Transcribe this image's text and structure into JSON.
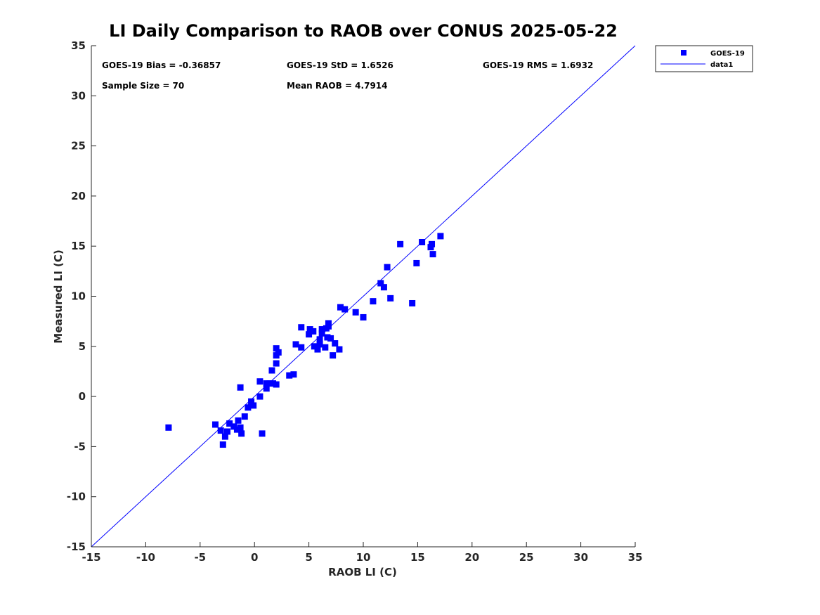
{
  "chart_data": {
    "type": "scatter",
    "title": "LI Daily Comparison to RAOB over CONUS 2025-05-22",
    "xlabel": "RAOB LI (C)",
    "ylabel": "Measured LI (C)",
    "xlim": [
      -15,
      35
    ],
    "ylim": [
      -15,
      35
    ],
    "xticks": [
      -15,
      -10,
      -5,
      0,
      5,
      10,
      15,
      20,
      25,
      30,
      35
    ],
    "yticks": [
      -15,
      -10,
      -5,
      0,
      5,
      10,
      15,
      20,
      25,
      30,
      35
    ],
    "grid": false,
    "legend_position": "outside-top-right",
    "stats": {
      "bias": "GOES-19 Bias = -0.36857",
      "std": "GOES-19 StD = 1.6526",
      "rms": "GOES-19 RMS = 1.6932",
      "sample_size": "Sample Size = 70",
      "mean_raob": "Mean RAOB = 4.7914"
    },
    "series": [
      {
        "name": "GOES-19",
        "marker": "square",
        "color": "#0000ff",
        "points": [
          [
            -7.9,
            -3.1
          ],
          [
            -3.6,
            -2.8
          ],
          [
            -3.1,
            -3.4
          ],
          [
            -2.9,
            -4.8
          ],
          [
            -2.7,
            -4.0
          ],
          [
            -2.5,
            -3.5
          ],
          [
            -2.3,
            -2.7
          ],
          [
            -1.9,
            -3.0
          ],
          [
            -1.6,
            -3.3
          ],
          [
            -1.5,
            -2.4
          ],
          [
            -1.3,
            -3.1
          ],
          [
            -1.2,
            -3.7
          ],
          [
            -1.3,
            0.9
          ],
          [
            -0.9,
            -2.0
          ],
          [
            -0.6,
            -1.1
          ],
          [
            -0.3,
            -0.5
          ],
          [
            -0.1,
            -0.9
          ],
          [
            0.5,
            0.0
          ],
          [
            0.7,
            -3.7
          ],
          [
            0.5,
            1.5
          ],
          [
            1.1,
            0.8
          ],
          [
            1.1,
            1.3
          ],
          [
            1.4,
            1.3
          ],
          [
            1.7,
            1.3
          ],
          [
            2.0,
            1.2
          ],
          [
            1.6,
            2.6
          ],
          [
            2.0,
            3.3
          ],
          [
            2.0,
            4.1
          ],
          [
            2.0,
            4.8
          ],
          [
            2.2,
            4.4
          ],
          [
            3.2,
            2.1
          ],
          [
            3.6,
            2.2
          ],
          [
            3.8,
            5.2
          ],
          [
            4.3,
            6.9
          ],
          [
            4.3,
            4.9
          ],
          [
            5.0,
            6.2
          ],
          [
            5.1,
            6.7
          ],
          [
            5.4,
            6.5
          ],
          [
            5.5,
            5.0
          ],
          [
            5.8,
            4.7
          ],
          [
            6.0,
            5.2
          ],
          [
            6.0,
            5.7
          ],
          [
            6.2,
            6.3
          ],
          [
            6.2,
            6.7
          ],
          [
            6.5,
            4.9
          ],
          [
            6.6,
            6.8
          ],
          [
            6.7,
            5.9
          ],
          [
            6.8,
            7.0
          ],
          [
            6.8,
            7.3
          ],
          [
            7.0,
            5.8
          ],
          [
            7.2,
            4.1
          ],
          [
            7.4,
            5.3
          ],
          [
            7.8,
            4.7
          ],
          [
            7.9,
            8.9
          ],
          [
            8.3,
            8.7
          ],
          [
            10.0,
            7.9
          ],
          [
            10.9,
            9.5
          ],
          [
            11.6,
            11.3
          ],
          [
            11.9,
            10.9
          ],
          [
            12.2,
            12.9
          ],
          [
            12.5,
            9.8
          ],
          [
            13.4,
            15.2
          ],
          [
            14.5,
            9.3
          ],
          [
            14.9,
            13.3
          ],
          [
            15.4,
            15.4
          ],
          [
            16.2,
            14.9
          ],
          [
            16.3,
            15.2
          ],
          [
            16.4,
            14.2
          ],
          [
            17.1,
            16.0
          ],
          [
            9.3,
            8.4
          ]
        ]
      },
      {
        "name": "data1",
        "type": "line",
        "color": "#0000ff",
        "points": [
          [
            -15,
            -15
          ],
          [
            35,
            35
          ]
        ]
      }
    ]
  }
}
